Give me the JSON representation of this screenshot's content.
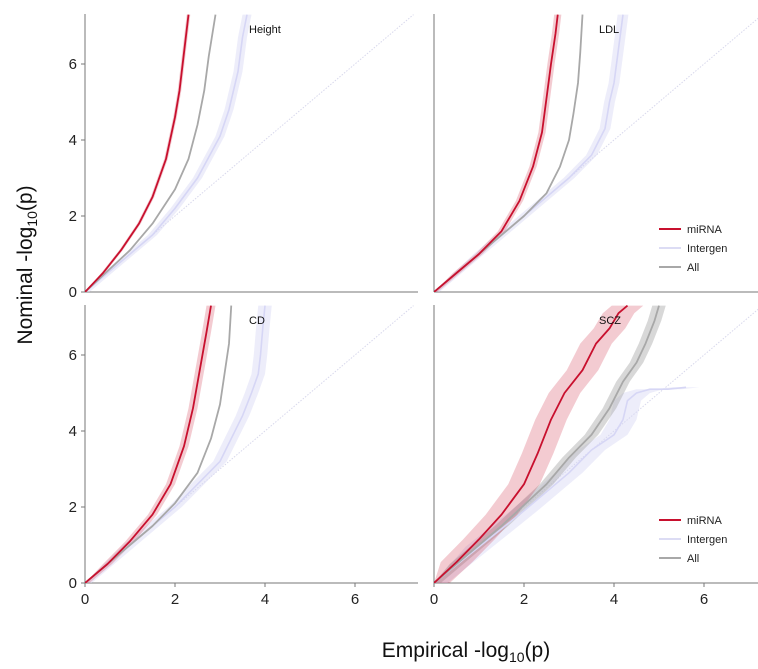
{
  "figure": {
    "xlabel": {
      "prefix": "Empirical -log",
      "sub": "10",
      "suffix": "(p)"
    },
    "ylabel": {
      "prefix": "Nominal -log",
      "sub": "10",
      "suffix": "(p)"
    }
  },
  "legend": {
    "items": [
      {
        "label": "miRNA",
        "color": "#c8102e"
      },
      {
        "label": "Intergen",
        "color": "#dcdcf4"
      },
      {
        "label": "All",
        "color": "#a8a8a8"
      }
    ]
  },
  "chart_data": [
    {
      "type": "line",
      "title": "Height",
      "xlim": [
        0,
        7.3
      ],
      "ylim": [
        0,
        7.3
      ],
      "xticks": [],
      "yticks": [
        0,
        2,
        4,
        6
      ],
      "legend": false,
      "series": [
        {
          "name": "miRNA",
          "color": "#c8102e",
          "band": 0.04,
          "points": [
            [
              0,
              0
            ],
            [
              0.4,
              0.5
            ],
            [
              0.8,
              1.1
            ],
            [
              1.2,
              1.8
            ],
            [
              1.5,
              2.5
            ],
            [
              1.8,
              3.5
            ],
            [
              2.0,
              4.6
            ],
            [
              2.1,
              5.3
            ],
            [
              2.2,
              6.3
            ],
            [
              2.3,
              7.3
            ]
          ]
        },
        {
          "name": "Intergen",
          "color": "#d6d6f5",
          "band": 0.1,
          "points": [
            [
              0,
              0
            ],
            [
              0.5,
              0.5
            ],
            [
              1.0,
              1.0
            ],
            [
              1.5,
              1.5
            ],
            [
              2.0,
              2.2
            ],
            [
              2.5,
              3.0
            ],
            [
              3.0,
              4.1
            ],
            [
              3.2,
              4.8
            ],
            [
              3.4,
              5.8
            ],
            [
              3.5,
              6.7
            ],
            [
              3.6,
              7.3
            ]
          ]
        },
        {
          "name": "All",
          "color": "#a8a8a8",
          "band": 0,
          "points": [
            [
              0,
              0
            ],
            [
              0.5,
              0.55
            ],
            [
              1.0,
              1.1
            ],
            [
              1.5,
              1.8
            ],
            [
              2.0,
              2.7
            ],
            [
              2.3,
              3.5
            ],
            [
              2.5,
              4.4
            ],
            [
              2.65,
              5.3
            ],
            [
              2.75,
              6.2
            ],
            [
              2.9,
              7.3
            ]
          ]
        }
      ]
    },
    {
      "type": "line",
      "title": "LDL",
      "xlim": [
        0,
        7.3
      ],
      "ylim": [
        0,
        7.3
      ],
      "xticks": [],
      "yticks": [],
      "legend": true,
      "series": [
        {
          "name": "miRNA",
          "color": "#c8102e",
          "band": 0.08,
          "points": [
            [
              0,
              0
            ],
            [
              0.5,
              0.5
            ],
            [
              1.0,
              1.0
            ],
            [
              1.5,
              1.6
            ],
            [
              1.9,
              2.4
            ],
            [
              2.2,
              3.3
            ],
            [
              2.4,
              4.2
            ],
            [
              2.5,
              5.1
            ],
            [
              2.6,
              6.0
            ],
            [
              2.7,
              6.8
            ],
            [
              2.75,
              7.3
            ]
          ]
        },
        {
          "name": "Intergen",
          "color": "#d6d6f5",
          "band": 0.12,
          "points": [
            [
              0,
              0
            ],
            [
              1.0,
              1.0
            ],
            [
              2.0,
              2.0
            ],
            [
              3.0,
              3.0
            ],
            [
              3.5,
              3.6
            ],
            [
              3.8,
              4.3
            ],
            [
              3.9,
              5.0
            ],
            [
              4.0,
              5.5
            ],
            [
              4.1,
              6.4
            ],
            [
              4.2,
              7.3
            ]
          ]
        },
        {
          "name": "All",
          "color": "#a8a8a8",
          "band": 0,
          "points": [
            [
              0,
              0
            ],
            [
              0.5,
              0.5
            ],
            [
              1.0,
              1.0
            ],
            [
              1.5,
              1.5
            ],
            [
              2.0,
              2.0
            ],
            [
              2.5,
              2.6
            ],
            [
              2.8,
              3.3
            ],
            [
              3.0,
              4.0
            ],
            [
              3.1,
              4.7
            ],
            [
              3.2,
              5.5
            ],
            [
              3.25,
              6.3
            ],
            [
              3.3,
              7.3
            ]
          ]
        }
      ]
    },
    {
      "type": "line",
      "title": "CD",
      "xlim": [
        0,
        7.3
      ],
      "ylim": [
        0,
        7.3
      ],
      "xticks": [
        0,
        2,
        4,
        6
      ],
      "yticks": [
        0,
        2,
        4,
        6
      ],
      "legend": false,
      "series": [
        {
          "name": "miRNA",
          "color": "#c8102e",
          "band": 0.1,
          "points": [
            [
              0,
              0
            ],
            [
              0.5,
              0.5
            ],
            [
              1.0,
              1.1
            ],
            [
              1.5,
              1.8
            ],
            [
              1.9,
              2.6
            ],
            [
              2.2,
              3.6
            ],
            [
              2.4,
              4.6
            ],
            [
              2.55,
              5.6
            ],
            [
              2.7,
              6.6
            ],
            [
              2.8,
              7.3
            ]
          ]
        },
        {
          "name": "Intergen",
          "color": "#d6d6f5",
          "band": 0.15,
          "points": [
            [
              0,
              0
            ],
            [
              1.0,
              1.0
            ],
            [
              2.0,
              2.0
            ],
            [
              3.0,
              3.2
            ],
            [
              3.5,
              4.4
            ],
            [
              3.7,
              5.0
            ],
            [
              3.85,
              5.5
            ],
            [
              3.9,
              6.0
            ],
            [
              3.95,
              6.7
            ],
            [
              4.0,
              7.3
            ]
          ]
        },
        {
          "name": "All",
          "color": "#a8a8a8",
          "band": 0,
          "points": [
            [
              0,
              0
            ],
            [
              0.5,
              0.5
            ],
            [
              1.0,
              1.0
            ],
            [
              1.5,
              1.5
            ],
            [
              2.0,
              2.1
            ],
            [
              2.5,
              2.9
            ],
            [
              2.8,
              3.8
            ],
            [
              3.0,
              4.7
            ],
            [
              3.1,
              5.5
            ],
            [
              3.2,
              6.3
            ],
            [
              3.25,
              7.3
            ]
          ]
        }
      ]
    },
    {
      "type": "line",
      "title": "SCZ",
      "xlim": [
        0,
        7.3
      ],
      "ylim": [
        0,
        7.3
      ],
      "xticks": [
        0,
        2,
        4,
        6
      ],
      "yticks": [],
      "legend": true,
      "series": [
        {
          "name": "miRNA",
          "color": "#c8102e",
          "band": 0.35,
          "points": [
            [
              0,
              0
            ],
            [
              0.5,
              0.55
            ],
            [
              1.0,
              1.15
            ],
            [
              1.5,
              1.8
            ],
            [
              2.0,
              2.6
            ],
            [
              2.3,
              3.4
            ],
            [
              2.6,
              4.3
            ],
            [
              2.9,
              5.0
            ],
            [
              3.3,
              5.6
            ],
            [
              3.6,
              6.3
            ],
            [
              3.9,
              6.7
            ],
            [
              4.1,
              7.1
            ],
            [
              4.3,
              7.3
            ]
          ]
        },
        {
          "name": "Intergen",
          "color": "#d6d6f5",
          "band": 0.3,
          "points": [
            [
              0,
              0
            ],
            [
              1.0,
              0.95
            ],
            [
              2.0,
              1.9
            ],
            [
              3.0,
              2.9
            ],
            [
              3.5,
              3.5
            ],
            [
              4.0,
              3.9
            ],
            [
              4.2,
              4.3
            ],
            [
              4.3,
              4.8
            ],
            [
              4.5,
              5.0
            ],
            [
              4.8,
              5.1
            ],
            [
              5.2,
              5.1
            ],
            [
              5.6,
              5.15
            ]
          ]
        },
        {
          "name": "All",
          "color": "#a8a8a8",
          "band": 0.15,
          "points": [
            [
              0,
              0
            ],
            [
              0.5,
              0.5
            ],
            [
              1.0,
              1.0
            ],
            [
              1.5,
              1.5
            ],
            [
              2.0,
              2.05
            ],
            [
              2.5,
              2.6
            ],
            [
              3.0,
              3.3
            ],
            [
              3.5,
              3.9
            ],
            [
              3.9,
              4.6
            ],
            [
              4.2,
              5.3
            ],
            [
              4.5,
              5.8
            ],
            [
              4.7,
              6.3
            ],
            [
              4.9,
              6.9
            ],
            [
              5.0,
              7.3
            ]
          ]
        }
      ]
    }
  ]
}
